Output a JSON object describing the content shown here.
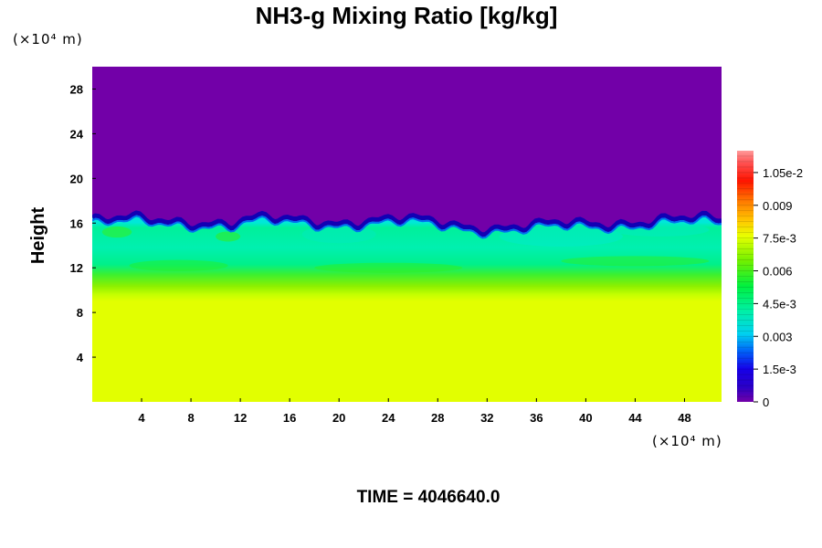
{
  "chart_data": {
    "type": "heatmap",
    "title": "NH3-g Mixing Ratio [kg/kg]",
    "ylabel": "Height",
    "x_unit": "(×10⁴ m)",
    "y_unit": "(×10⁴ m)",
    "xlim": [
      0,
      51
    ],
    "ylim": [
      0,
      30
    ],
    "x_ticks": [
      "4",
      "8",
      "12",
      "16",
      "20",
      "24",
      "28",
      "32",
      "36",
      "40",
      "44",
      "48"
    ],
    "y_ticks": [
      "4",
      "8",
      "12",
      "16",
      "20",
      "24",
      "28"
    ],
    "colorbar": {
      "min": 0,
      "max": 0.0115,
      "labels": [
        "0",
        "1.5e-3",
        "0.003",
        "4.5e-3",
        "0.006",
        "7.5e-3",
        "0.009",
        "1.05e-2"
      ],
      "label_values": [
        0,
        0.0015,
        0.003,
        0.0045,
        0.006,
        0.0075,
        0.009,
        0.0105
      ],
      "colors": [
        "#7200a8",
        "#1600e8",
        "#00e8e0",
        "#00f070",
        "#70f000",
        "#e8ff00",
        "#ff8c00",
        "#ff0000",
        "#ff8a8a"
      ]
    },
    "layers": [
      {
        "from_height": 0,
        "to_height": 9.5,
        "value": 0.0075
      },
      {
        "from_height": 9.5,
        "to_height": 12.5,
        "value": 0.0065
      },
      {
        "from_height": 12.5,
        "to_height": 16.2,
        "value": 0.0048
      },
      {
        "from_height": 16.2,
        "to_height": 30,
        "value": 0
      }
    ],
    "grid": false,
    "legend": "colorbar-right"
  },
  "footer": {
    "time_label": "TIME = 4046640.0"
  }
}
